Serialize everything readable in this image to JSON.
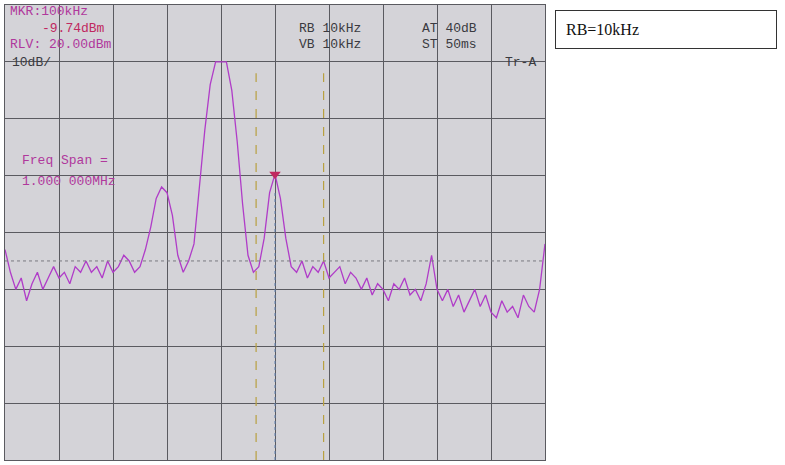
{
  "chart_data": {
    "type": "line",
    "color": "#b03cc8",
    "annotations": [
      "MKR:100kHz",
      "-9.74dBm",
      "RLV: 20.00dBm",
      "10dB/",
      "RB 10kHz",
      "VB 10kHz",
      "AT 40dB",
      "ST 50ms",
      "Tr-A",
      "Freq Span =",
      "1.000 000MHz"
    ],
    "note": "RB=10kHz",
    "x": [
      -400,
      -390,
      -380,
      -370,
      -360,
      -350,
      -340,
      -330,
      -320,
      -310,
      -300,
      -290,
      -280,
      -270,
      -260,
      -250,
      -240,
      -230,
      -220,
      -210,
      -200,
      -190,
      -180,
      -170,
      -160,
      -150,
      -140,
      -130,
      -120,
      -110,
      -100,
      -90,
      -80,
      -70,
      -60,
      -50,
      -40,
      -30,
      -20,
      -10,
      0,
      10,
      20,
      30,
      40,
      50,
      60,
      70,
      80,
      90,
      100,
      110,
      120,
      130,
      140,
      150,
      160,
      170,
      180,
      190,
      200,
      210,
      220,
      230,
      240,
      250,
      260,
      270,
      280,
      290,
      300,
      310,
      320,
      330,
      340,
      350,
      360,
      370,
      380,
      390,
      400,
      410,
      420,
      430,
      440,
      450,
      460,
      470,
      480,
      490,
      500,
      510,
      520,
      530,
      540,
      550,
      560,
      570,
      580,
      590,
      600
    ],
    "values": [
      -23,
      -27,
      -30,
      -28,
      -32,
      -29,
      -27,
      -30,
      -28,
      -26,
      -28,
      -27,
      -29,
      -26,
      -27,
      -25,
      -27,
      -26,
      -28,
      -25,
      -27,
      -26,
      -24,
      -25,
      -27,
      -26,
      -23,
      -19,
      -14,
      -12,
      -13,
      -17,
      -24,
      -27,
      -25,
      -22,
      -12,
      -2,
      6,
      10,
      10,
      10,
      5,
      -4,
      -15,
      -24,
      -27,
      -26,
      -21,
      -13,
      -9.74,
      -14,
      -21,
      -26,
      -27,
      -25,
      -28,
      -26,
      -27,
      -25,
      -28,
      -27,
      -26,
      -29,
      -27,
      -28,
      -30,
      -28,
      -31,
      -29,
      -30,
      -32,
      -29,
      -30,
      -28,
      -31,
      -30,
      -32,
      -29,
      -24,
      -30,
      -32,
      -30,
      -33,
      -31,
      -34,
      -32,
      -30,
      -33,
      -31,
      -34,
      -35,
      -32,
      -34,
      -33,
      -35,
      -31,
      -33,
      -34,
      -30,
      -22
    ],
    "peak_marker": {
      "x": 100,
      "y": -9.74
    },
    "window": [
      65,
      190
    ],
    "display_line": -25,
    "xlim": [
      -400,
      600
    ],
    "xticks": [
      -400,
      -300,
      -200,
      -100,
      0,
      100,
      200,
      300,
      400,
      500,
      600
    ],
    "ylim": [
      -60,
      20
    ],
    "yticks": [
      -60,
      -50,
      -40,
      -30,
      -20,
      -10,
      0,
      10,
      20
    ],
    "grid": true,
    "tick_labels": false
  }
}
